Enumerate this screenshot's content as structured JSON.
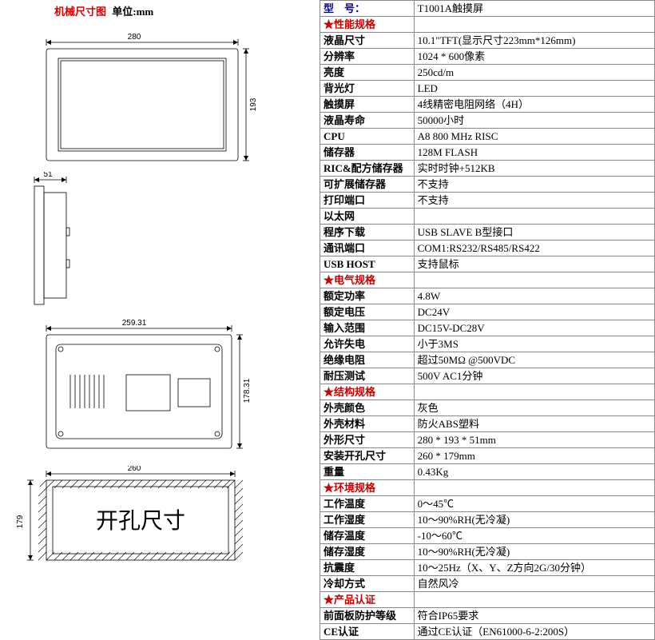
{
  "left_panel": {
    "title_red": "机械尺寸图",
    "title_black": "单位:mm",
    "diagrams": {
      "front": {
        "width_label": "280",
        "height_label": "193"
      },
      "side": {
        "width_label": "51"
      },
      "back": {
        "width_label": "259.31",
        "height_label": "178.31"
      },
      "cutout": {
        "width_label": "260",
        "height_label": "179",
        "text": "开孔尺寸"
      }
    }
  },
  "spec_table": {
    "model": {
      "label": "型　号：",
      "value": "T1001A触摸屏"
    },
    "sections": [
      {
        "header": "★性能规格",
        "rows": [
          {
            "label": "液晶尺寸",
            "value": "10.1\"TFT(显示尺寸223mm*126mm)"
          },
          {
            "label": "分辨率",
            "value": "1024 * 600像素"
          },
          {
            "label": "亮度",
            "value": "250cd/m"
          },
          {
            "label": "背光灯",
            "value": "LED"
          },
          {
            "label": "触摸屏",
            "value": "4线精密电阻网络（4H）"
          },
          {
            "label": "液晶寿命",
            "value": "50000小时"
          },
          {
            "label": "CPU",
            "value": "A8 800 MHz RISC"
          },
          {
            "label": "储存器",
            "value": "128M FLASH"
          },
          {
            "label": "RIC&配方储存器",
            "value": "实时时钟+512KB"
          },
          {
            "label": "可扩展储存器",
            "value": "不支持"
          },
          {
            "label": "打印端口",
            "value": "不支持"
          },
          {
            "label": "以太网",
            "value": ""
          },
          {
            "label": "程序下载",
            "value": "USB SLAVE B型接口"
          },
          {
            "label": "通讯端口",
            "value": "COM1:RS232/RS485/RS422"
          },
          {
            "label": "USB HOST",
            "value": "支持鼠标"
          }
        ]
      },
      {
        "header": "★电气规格",
        "rows": [
          {
            "label": "额定功率",
            "value": "4.8W"
          },
          {
            "label": "额定电压",
            "value": "DC24V"
          },
          {
            "label": "输入范围",
            "value": "DC15V-DC28V"
          },
          {
            "label": "允许失电",
            "value": "小于3MS"
          },
          {
            "label": "绝缘电阻",
            "value": "超过50MΩ @500VDC"
          },
          {
            "label": "耐压测试",
            "value": "500V AC1分钟"
          }
        ]
      },
      {
        "header": "★结构规格",
        "rows": [
          {
            "label": "外壳颜色",
            "value": "灰色"
          },
          {
            "label": "外壳材料",
            "value": "防火ABS塑料"
          },
          {
            "label": "外形尺寸",
            "value": "280 * 193 * 51mm"
          },
          {
            "label": "安装开孔尺寸",
            "value": "260 * 179mm"
          },
          {
            "label": "重量",
            "value": "0.43Kg"
          }
        ]
      },
      {
        "header": "★环境规格",
        "rows": [
          {
            "label": "工作温度",
            "value": "0～45℃"
          },
          {
            "label": "工作湿度",
            "value": "10～90%RH(无冷凝)"
          },
          {
            "label": "储存温度",
            "value": "-10～60℃"
          },
          {
            "label": "储存湿度",
            "value": "10～90%RH(无冷凝)"
          },
          {
            "label": "抗震度",
            "value": "10～25Hz（X、Y、Z方向2G/30分钟）"
          },
          {
            "label": "冷却方式",
            "value": "自然风冷"
          }
        ]
      },
      {
        "header": "★产品认证",
        "rows": [
          {
            "label": "前面板防护等级",
            "value": "符合IP65要求"
          },
          {
            "label": "CE认证",
            "value": "通过CE认证（EN61000-6-2:200S）"
          }
        ]
      }
    ]
  },
  "colors": {
    "red": "#cc0000",
    "blue": "#000099",
    "black": "#000000",
    "border": "#888888"
  }
}
